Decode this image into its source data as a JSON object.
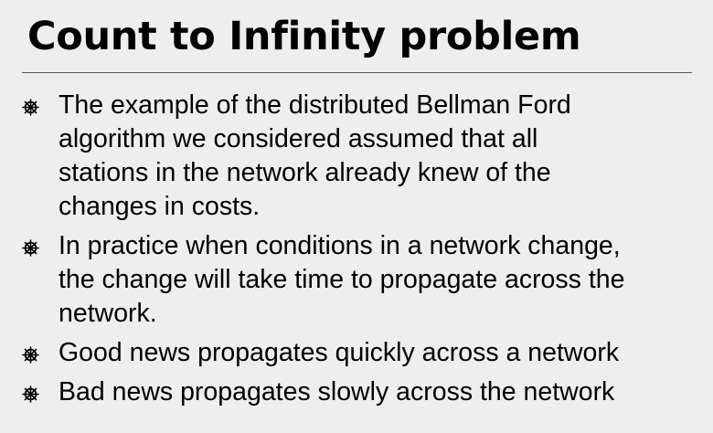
{
  "slide": {
    "title": "Count to Infinity problem",
    "bullets": [
      {
        "lines": [
          "The example of the distributed Bellman Ford",
          "algorithm we considered assumed that all",
          "stations in the network already knew of the",
          "changes in costs."
        ]
      },
      {
        "lines": [
          "In practice when conditions in a network change,",
          "the change will take time to propagate across the",
          "network."
        ]
      },
      {
        "lines": [
          "Good news propagates quickly across a network"
        ]
      },
      {
        "lines": [
          "Bad news propagates slowly across the network"
        ]
      }
    ],
    "bullet_icon": "wheel-bullet-icon",
    "colors": {
      "background": "#eeeeee",
      "text": "#000000",
      "rule": "#555555"
    }
  }
}
